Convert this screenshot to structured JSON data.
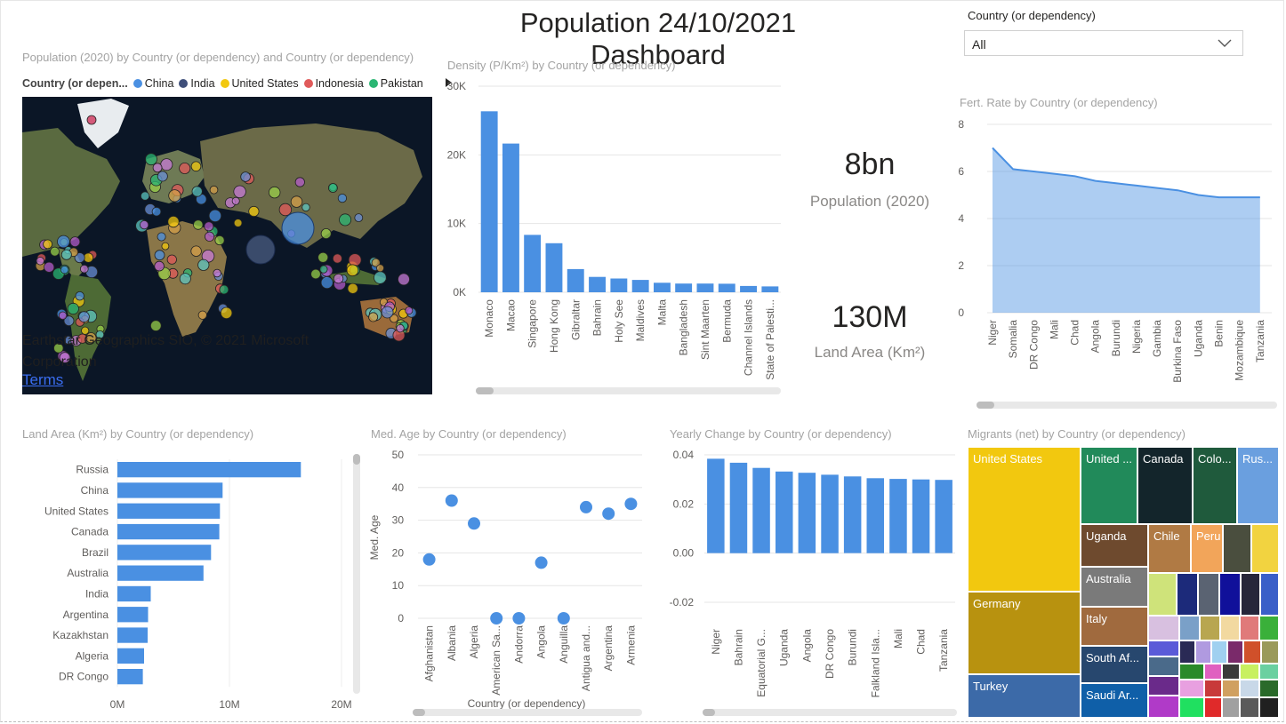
{
  "dashboard": {
    "title": "Population 24/10/2021  Dashboard"
  },
  "slicer": {
    "label": "Country (or dependency)",
    "value": "All"
  },
  "map_visual": {
    "title": "Population  (2020) by Country (or dependency) and Country (or dependency)",
    "legend_title": "Country (or depen...",
    "legend": [
      {
        "name": "China",
        "color": "#4a90e2"
      },
      {
        "name": "India",
        "color": "#3f4f7a"
      },
      {
        "name": "United States",
        "color": "#f2c80f"
      },
      {
        "name": "Indonesia",
        "color": "#e05a5a"
      },
      {
        "name": "Pakistan",
        "color": "#2bb673"
      }
    ],
    "attribution": "Earthstar Geographics SIO, © 2021 Microsoft Corporation",
    "terms": "Terms"
  },
  "density_chart": {
    "title": "Density  (P/Km²) by Country (or dependency)"
  },
  "cards": {
    "population": {
      "value": "8bn",
      "label": "Population  (2020)"
    },
    "land_area": {
      "value": "130M",
      "label": "Land Area  (Km²)"
    }
  },
  "fert_chart": {
    "title": "Fert.  Rate by Country (or dependency)"
  },
  "land_chart": {
    "title": "Land Area  (Km²) by Country (or dependency)"
  },
  "medage_chart": {
    "title": "Med.  Age by Country (or dependency)"
  },
  "yearly_chart": {
    "title": "Yearly  Change by Country (or dependency)"
  },
  "migrants_chart": {
    "title": "Migrants  (net) by Country (or dependency)"
  },
  "chart_data": [
    {
      "type": "bar",
      "title": "Density  (P/Km²) by Country (or dependency)",
      "categories": [
        "Monaco",
        "Macao",
        "Singapore",
        "Hong Kong",
        "Gibraltar",
        "Bahrain",
        "Holy See",
        "Maldives",
        "Malta",
        "Bangladesh",
        "Sint Maarten",
        "Bermuda",
        "Channel Islands",
        "State of Palesti..."
      ],
      "values": [
        26337,
        21645,
        8358,
        7140,
        3369,
        2239,
        2003,
        1802,
        1380,
        1265,
        1261,
        1246,
        915,
        847
      ],
      "yticks": [
        "0K",
        "10K",
        "20K",
        "30K"
      ],
      "ylim": [
        0,
        30000
      ],
      "color": "#4a90e2"
    },
    {
      "type": "area",
      "title": "Fert.  Rate by Country (or dependency)",
      "categories": [
        "Niger",
        "Somalia",
        "DR Congo",
        "Mali",
        "Chad",
        "Angola",
        "Burundi",
        "Nigeria",
        "Gambia",
        "Burkina Faso",
        "Uganda",
        "Benin",
        "Mozambique",
        "Tanzania"
      ],
      "values": [
        7.0,
        6.1,
        6.0,
        5.9,
        5.8,
        5.6,
        5.5,
        5.4,
        5.3,
        5.2,
        5.0,
        4.9,
        4.9,
        4.9
      ],
      "yticks": [
        "0",
        "2",
        "4",
        "6",
        "8"
      ],
      "ylim": [
        0,
        8
      ],
      "color": "#4a90e2"
    },
    {
      "type": "bar",
      "orientation": "horizontal",
      "title": "Land Area  (Km²) by Country (or dependency)",
      "categories": [
        "Russia",
        "China",
        "United States",
        "Canada",
        "Brazil",
        "Australia",
        "India",
        "Argentina",
        "Kazakhstan",
        "Algeria",
        "DR Congo"
      ],
      "values": [
        16376870,
        9388211,
        9147420,
        9093510,
        8358140,
        7682300,
        2973190,
        2736690,
        2699700,
        2381740,
        2267050
      ],
      "xticks": [
        "0M",
        "10M",
        "20M"
      ],
      "xlim": [
        0,
        20000000
      ],
      "color": "#4a90e2"
    },
    {
      "type": "scatter",
      "title": "Med.  Age by Country (or dependency)",
      "xlabel": "Country (or dependency)",
      "ylabel": "Med. Age",
      "categories": [
        "Afghanistan",
        "Albania",
        "Algeria",
        "American Sa...",
        "Andorra",
        "Angola",
        "Anguilla",
        "Antigua and...",
        "Argentina",
        "Armenia"
      ],
      "values": [
        18,
        36,
        29,
        0,
        0,
        17,
        0,
        34,
        32,
        35
      ],
      "yticks": [
        "0",
        "10",
        "20",
        "30",
        "40",
        "50"
      ],
      "ylim": [
        0,
        50
      ],
      "color": "#4a90e2"
    },
    {
      "type": "bar",
      "title": "Yearly  Change by Country (or dependency)",
      "categories": [
        "Niger",
        "Bahrain",
        "Equatorial G...",
        "Uganda",
        "Angola",
        "DR Congo",
        "Burundi",
        "Falkland Isla...",
        "Mali",
        "Chad",
        "Tanzania"
      ],
      "values": [
        0.0384,
        0.0368,
        0.0347,
        0.0332,
        0.0327,
        0.0319,
        0.0312,
        0.0305,
        0.0302,
        0.03,
        0.0298
      ],
      "yticks": [
        "-0.02",
        "0.00",
        "0.02",
        "0.04"
      ],
      "ylim": [
        -0.02,
        0.04
      ],
      "color": "#4a90e2"
    },
    {
      "type": "treemap",
      "title": "Migrants  (net) by Country (or dependency)",
      "categories": [
        "United States",
        "Germany",
        "Turkey",
        "United ...",
        "Canada",
        "Colo...",
        "Rus...",
        "Uganda",
        "Chile",
        "Peru",
        "Australia",
        "Italy",
        "South Af...",
        "Saudi Ar..."
      ]
    }
  ]
}
